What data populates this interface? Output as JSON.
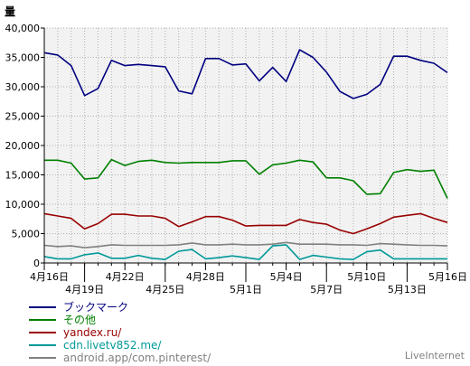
{
  "chart_data": {
    "type": "line",
    "title": "",
    "ylabel": "量",
    "xlabel": "",
    "ylim": [
      0,
      40000
    ],
    "yticks": [
      0,
      5000,
      10000,
      15000,
      20000,
      25000,
      30000,
      35000,
      40000
    ],
    "ytick_labels": [
      "0",
      "5,000",
      "10,000",
      "15,000",
      "20,000",
      "25,000",
      "30,000",
      "35,000",
      "40,000"
    ],
    "grid": true,
    "x": [
      "4月16日",
      "4月17日",
      "4月18日",
      "4月19日",
      "4月20日",
      "4月21日",
      "4月22日",
      "4月23日",
      "4月24日",
      "4月25日",
      "4月26日",
      "4月27日",
      "4月28日",
      "4月29日",
      "4月30日",
      "5月1日",
      "5月2日",
      "5月3日",
      "5月4日",
      "5月5日",
      "5月6日",
      "5月7日",
      "5月8日",
      "5月9日",
      "5月10日",
      "5月11日",
      "5月12日",
      "5月13日",
      "5月14日",
      "5月15日",
      "5月16日"
    ],
    "xtick_labels": [
      {
        "index": 0,
        "label": "4月16日",
        "row": 0
      },
      {
        "index": 3,
        "label": "4月19日",
        "row": 1
      },
      {
        "index": 6,
        "label": "4月22日",
        "row": 0
      },
      {
        "index": 9,
        "label": "4月25日",
        "row": 1
      },
      {
        "index": 12,
        "label": "4月28日",
        "row": 0
      },
      {
        "index": 15,
        "label": "5月1日",
        "row": 1
      },
      {
        "index": 18,
        "label": "5月4日",
        "row": 0
      },
      {
        "index": 21,
        "label": "5月7日",
        "row": 1
      },
      {
        "index": 24,
        "label": "5月10日",
        "row": 0
      },
      {
        "index": 27,
        "label": "5月13日",
        "row": 1
      },
      {
        "index": 30,
        "label": "5月16日",
        "row": 0
      }
    ],
    "series": [
      {
        "name": "ブックマーク",
        "color": "#000080",
        "values": [
          35800,
          35400,
          33600,
          28500,
          29700,
          34500,
          33600,
          33800,
          33600,
          33400,
          29300,
          28800,
          34800,
          34800,
          33700,
          33900,
          31000,
          33300,
          30900,
          36300,
          35000,
          32500,
          29200,
          28000,
          28700,
          30400,
          35200,
          35200,
          34500,
          34000,
          32400
        ]
      },
      {
        "name": "その他",
        "color": "#008000",
        "values": [
          17500,
          17500,
          17000,
          14300,
          14500,
          17600,
          16600,
          17300,
          17500,
          17100,
          17000,
          17100,
          17100,
          17100,
          17400,
          17400,
          15100,
          16700,
          17000,
          17500,
          17200,
          14500,
          14500,
          14000,
          11700,
          11800,
          15400,
          15900,
          15600,
          15800,
          11000
        ]
      },
      {
        "name": "yandex.ru/",
        "color": "#990000",
        "values": [
          8400,
          8000,
          7600,
          5800,
          6700,
          8300,
          8300,
          8000,
          8000,
          7600,
          6200,
          7000,
          7900,
          7900,
          7300,
          6300,
          6400,
          6400,
          6400,
          7400,
          6900,
          6600,
          5600,
          5000,
          5800,
          6700,
          7800,
          8100,
          8400,
          7600,
          6900
        ]
      },
      {
        "name": "cdn.livetv852.me/",
        "color": "#009999",
        "values": [
          1100,
          700,
          700,
          1400,
          1700,
          800,
          800,
          1300,
          800,
          600,
          2000,
          2300,
          700,
          900,
          1200,
          900,
          600,
          2900,
          3100,
          600,
          1300,
          1000,
          700,
          600,
          1900,
          2200,
          700,
          700,
          700,
          700,
          700
        ]
      },
      {
        "name": "android.app/com.pinterest/",
        "color": "#808080",
        "values": [
          3000,
          2800,
          2900,
          2600,
          2800,
          3100,
          3000,
          3000,
          3000,
          3000,
          3100,
          3400,
          3100,
          3100,
          3200,
          3100,
          3100,
          3200,
          3500,
          3200,
          3200,
          3200,
          3100,
          3100,
          3000,
          3300,
          3200,
          3100,
          3000,
          3000,
          2900
        ]
      }
    ]
  },
  "brand": "LiveInternet"
}
